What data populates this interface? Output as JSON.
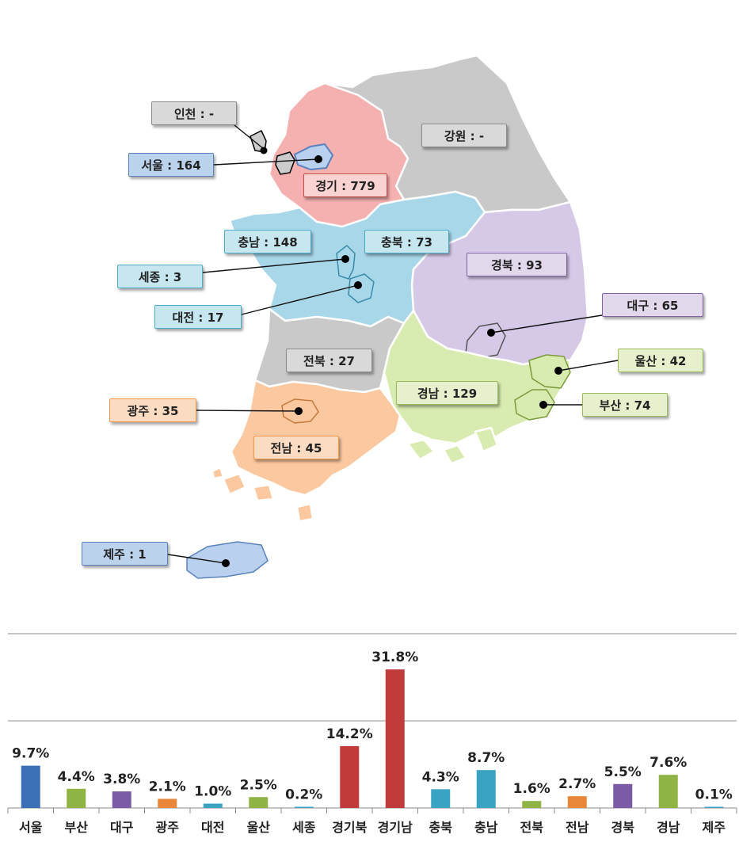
{
  "regions": {
    "incheon": {
      "label": "인천 : -",
      "color": "#d9d9d9",
      "border": "#8c8c8c"
    },
    "seoul": {
      "label": "서울 : 164",
      "color": "#bcd3ee",
      "border": "#5b82bd"
    },
    "gyeonggi": {
      "label": "경기 : 779",
      "color": "#f9d2d2",
      "border": "#c0504d"
    },
    "gangwon": {
      "label": "강원 : -",
      "color": "#d9d9d9",
      "border": "#8c8c8c"
    },
    "chungnam": {
      "label": "충남 : 148",
      "color": "#c6e7f0",
      "border": "#4aacc6"
    },
    "chungbuk": {
      "label": "충북 : 73",
      "color": "#c6e7f0",
      "border": "#4aacc6"
    },
    "sejong": {
      "label": "세종 : 3",
      "color": "#c6e7f0",
      "border": "#4aacc6"
    },
    "daejeon": {
      "label": "대전 : 17",
      "color": "#c6e7f0",
      "border": "#4aacc6"
    },
    "gyeongbuk": {
      "label": "경북 : 93",
      "color": "#e1d8ec",
      "border": "#8064a2"
    },
    "daegu": {
      "label": "대구 : 65",
      "color": "#e1d8ec",
      "border": "#8064a2"
    },
    "jeonbuk": {
      "label": "전북 : 27",
      "color": "#d9d9d9",
      "border": "#8c8c8c"
    },
    "ulsan": {
      "label": "울산 : 42",
      "color": "#e6f0cc",
      "border": "#9bbb59"
    },
    "gyeongnam": {
      "label": "경남 : 129",
      "color": "#e6f0cc",
      "border": "#9bbb59"
    },
    "busan": {
      "label": "부산 : 74",
      "color": "#e6f0cc",
      "border": "#9bbb59"
    },
    "gwangju": {
      "label": "광주 : 35",
      "color": "#fbdcc2",
      "border": "#f79646"
    },
    "jeonnam": {
      "label": "전남 : 45",
      "color": "#fbdcc2",
      "border": "#f79646"
    },
    "jeju": {
      "label": "제주 : 1",
      "color": "#bcd3ee",
      "border": "#5b82bd"
    }
  },
  "map_colors": {
    "gyeonggi": "#f5b0b0",
    "gangwon": "#c9c9c9",
    "chungcheong": "#a9d7ea",
    "gyeongbuk": "#d6c9e8",
    "jeonbuk": "#c9c9c9",
    "gyeongnam": "#d8ebb0",
    "jeonnam": "#fbc8a0",
    "seoul_jeju": "#b9d1ef",
    "incheon": "#cccccc"
  },
  "chart_data": {
    "type": "bar",
    "categories": [
      "서울",
      "부산",
      "대구",
      "광주",
      "대전",
      "울산",
      "세종",
      "경기북",
      "경기남",
      "충북",
      "충남",
      "전북",
      "전남",
      "경북",
      "경남",
      "제주"
    ],
    "values": [
      9.7,
      4.4,
      3.8,
      2.1,
      1.0,
      2.5,
      0.2,
      14.2,
      31.8,
      4.3,
      8.7,
      1.6,
      2.7,
      5.5,
      7.6,
      0.1
    ],
    "value_labels": [
      "9.7%",
      "4.4%",
      "3.8%",
      "2.1%",
      "1.0%",
      "2.5%",
      "0.2%",
      "14.2%",
      "31.8%",
      "4.3%",
      "8.7%",
      "1.6%",
      "2.7%",
      "5.5%",
      "7.6%",
      "0.1%"
    ],
    "colors": [
      "#3b6fb6",
      "#8fb444",
      "#7b5aa6",
      "#e8873a",
      "#3aa3c3",
      "#8fb444",
      "#3aa3c3",
      "#c23b3b",
      "#c23b3b",
      "#3aa3c3",
      "#3aa3c3",
      "#8fb444",
      "#e8873a",
      "#7b5aa6",
      "#8fb444",
      "#3aa3c3"
    ],
    "ylim": [
      0,
      40
    ],
    "grid": true
  }
}
